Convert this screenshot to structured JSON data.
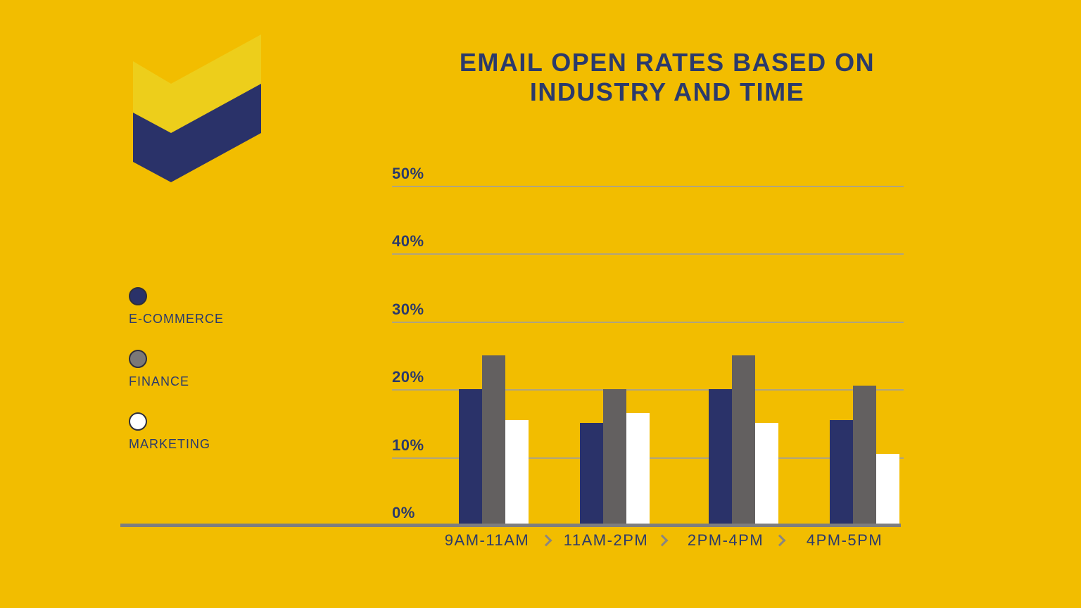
{
  "colors": {
    "background": "#F2BD00",
    "title_text": "#2B3A6B",
    "axis_text": "#2B3A6B",
    "gridline": "#9E9E9E",
    "baseline": "#7E7E7E",
    "separator": "#8A8680",
    "swatch_border": "#2E2E3C"
  },
  "logo": {
    "top_chevron_color": "#EDCE1B",
    "bottom_chevron_color": "#2A3269"
  },
  "title": {
    "line1": "EMAIL OPEN RATES BASED ON",
    "line2": "INDUSTRY AND TIME"
  },
  "legend": {
    "items": [
      {
        "label": "E-COMMERCE",
        "swatch_color": "#2A3269"
      },
      {
        "label": "FINANCE",
        "swatch_color": "#7B7877"
      },
      {
        "label": "MARKETING",
        "swatch_color": "#FFFFFF"
      }
    ]
  },
  "chart_data": {
    "type": "bar",
    "title": "EMAIL OPEN RATES BASED ON INDUSTRY AND TIME",
    "unit": "%",
    "categories": [
      "9AM-11AM",
      "11AM-2PM",
      "2PM-4PM",
      "4PM-5PM"
    ],
    "series": [
      {
        "name": "E-COMMERCE",
        "color": "#2A3269",
        "values": [
          20,
          15,
          20,
          15.5
        ]
      },
      {
        "name": "FINANCE",
        "color": "#636060",
        "values": [
          25,
          20,
          25,
          20.5
        ]
      },
      {
        "name": "MARKETING",
        "color": "#FFFFFF",
        "values": [
          15.5,
          16.5,
          15,
          10.5
        ]
      }
    ],
    "xlabel": "",
    "ylabel": "",
    "ylim": [
      0,
      50
    ],
    "y_ticks": [
      "50%",
      "40%",
      "30%",
      "20%",
      "10%",
      "0%"
    ],
    "grid": true,
    "legend_position": "left",
    "x_separator_icon": "chevron-right"
  }
}
